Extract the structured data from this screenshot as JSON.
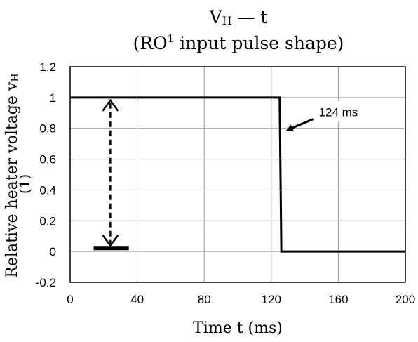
{
  "chart_data": {
    "type": "line",
    "title_line1_main": "V",
    "title_line1_sub": "H",
    "title_line1_rest": " — t",
    "title_line2_pre": "(RO",
    "title_line2_sup": "1",
    "title_line2_post": " input pulse shape)",
    "xlabel": "Time  t (ms)",
    "ylabel": "Relative heater voltage  v",
    "ylabel_sub": "H",
    "ylabel_unit": "(1)",
    "xlim": [
      0,
      200
    ],
    "ylim": [
      -0.2,
      1.2
    ],
    "x_ticks": [
      0,
      40,
      80,
      120,
      160,
      200
    ],
    "y_ticks": [
      -0.2,
      0,
      0.2,
      0.4,
      0.6,
      0.8,
      1,
      1.2
    ],
    "x_tick_labels": [
      "0",
      "40",
      "80",
      "120",
      "160",
      "200"
    ],
    "y_tick_labels": [
      "-0.2",
      "0",
      "0.2",
      "0.4",
      "0.6",
      "0.8",
      "1",
      "1.2"
    ],
    "grid": true,
    "series": [
      {
        "x": [
          0,
          125,
          126,
          200
        ],
        "y": [
          1,
          1,
          0,
          0
        ]
      }
    ],
    "annotations": {
      "pulse_label": "124 ms",
      "amplitude_arrow": {
        "x": 24,
        "y_from": 0.02,
        "y_to": 1
      },
      "baseline_marker": {
        "x_from": 14,
        "x_to": 35,
        "y": 0.02
      },
      "pointer_arrow_target": {
        "x": 127,
        "y": 0.77
      },
      "pointer_arrow_from": {
        "x": 145,
        "y": 0.86
      }
    }
  }
}
